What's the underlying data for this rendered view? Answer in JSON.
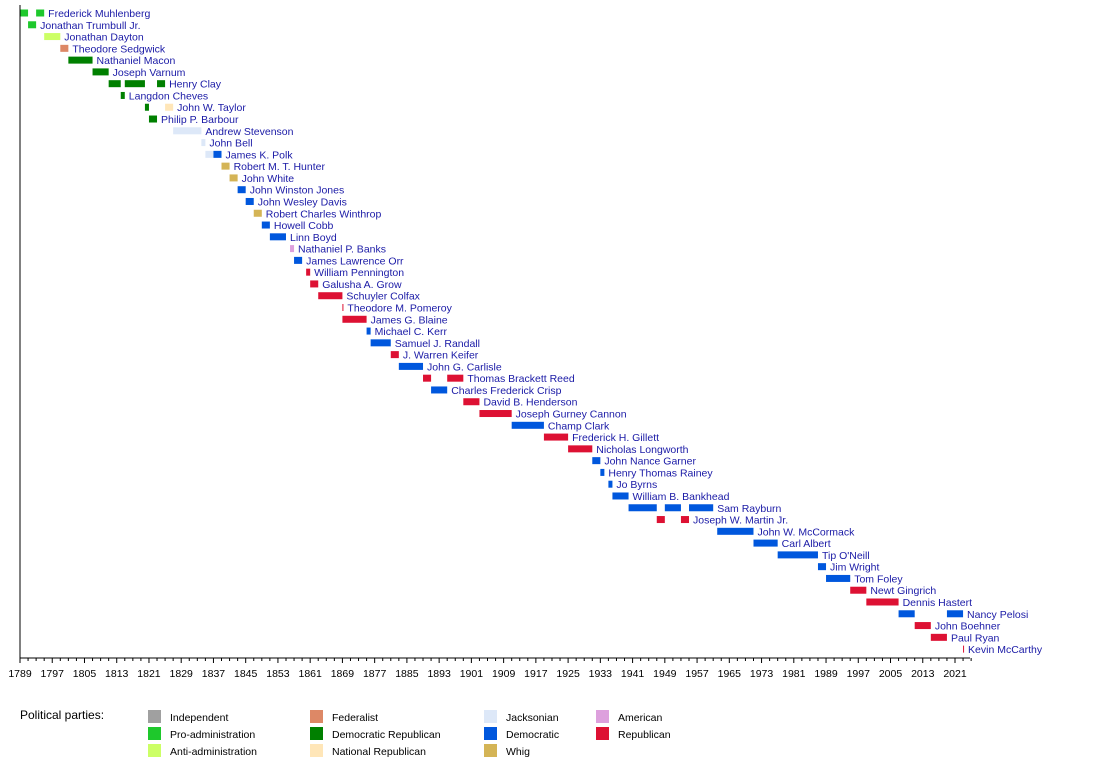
{
  "chart_data": {
    "type": "timeline",
    "title": "",
    "xlabel": "",
    "xlim": [
      1789,
      2025
    ],
    "x_ticks": [
      1789,
      1797,
      1805,
      1813,
      1821,
      1829,
      1837,
      1845,
      1853,
      1861,
      1869,
      1877,
      1885,
      1893,
      1901,
      1909,
      1917,
      1925,
      1933,
      1941,
      1949,
      1957,
      1965,
      1973,
      1981,
      1989,
      1997,
      2005,
      2013,
      2021
    ],
    "legend_title": "Political parties:",
    "parties": [
      {
        "key": "ind",
        "name": "Independent",
        "color": "#a0a0a0"
      },
      {
        "key": "pro",
        "name": "Pro-administration",
        "color": "#1ec82c"
      },
      {
        "key": "anti",
        "name": "Anti-administration",
        "color": "#ccff66"
      },
      {
        "key": "fed",
        "name": "Federalist",
        "color": "#dd8866"
      },
      {
        "key": "dr",
        "name": "Democratic Republican",
        "color": "#008000"
      },
      {
        "key": "nr",
        "name": "National Republican",
        "color": "#ffe6b8"
      },
      {
        "key": "jack",
        "name": "Jacksonian",
        "color": "#dde8f8"
      },
      {
        "key": "dem",
        "name": "Democratic",
        "color": "#0057dd"
      },
      {
        "key": "whig",
        "name": "Whig",
        "color": "#d4b456"
      },
      {
        "key": "am",
        "name": "American",
        "color": "#dda0dd"
      },
      {
        "key": "rep",
        "name": "Republican",
        "color": "#dd1133"
      }
    ],
    "speakers": [
      {
        "name": "Frederick Muhlenberg",
        "terms": [
          [
            1789,
            1791,
            "pro"
          ],
          [
            1793,
            1795,
            "pro"
          ]
        ]
      },
      {
        "name": "Jonathan Trumbull Jr.",
        "terms": [
          [
            1791,
            1793,
            "pro"
          ]
        ]
      },
      {
        "name": "Jonathan Dayton",
        "terms": [
          [
            1795,
            1799,
            "anti"
          ]
        ]
      },
      {
        "name": "Theodore Sedgwick",
        "terms": [
          [
            1799,
            1801,
            "fed"
          ]
        ]
      },
      {
        "name": "Nathaniel Macon",
        "terms": [
          [
            1801,
            1807,
            "dr"
          ]
        ]
      },
      {
        "name": "Joseph Varnum",
        "terms": [
          [
            1807,
            1811,
            "dr"
          ]
        ]
      },
      {
        "name": "Henry Clay",
        "terms": [
          [
            1811,
            1814,
            "dr"
          ],
          [
            1815,
            1820,
            "dr"
          ],
          [
            1823,
            1825,
            "dr"
          ]
        ]
      },
      {
        "name": "Langdon Cheves",
        "terms": [
          [
            1814,
            1815,
            "dr"
          ]
        ]
      },
      {
        "name": "John W. Taylor",
        "terms": [
          [
            1820,
            1821,
            "dr"
          ],
          [
            1825,
            1827,
            "nr"
          ]
        ]
      },
      {
        "name": "Philip P. Barbour",
        "terms": [
          [
            1821,
            1823,
            "dr"
          ]
        ]
      },
      {
        "name": "Andrew Stevenson",
        "terms": [
          [
            1827,
            1834,
            "jack"
          ]
        ]
      },
      {
        "name": "John Bell",
        "terms": [
          [
            1834,
            1835,
            "jack"
          ]
        ]
      },
      {
        "name": "James K. Polk",
        "terms": [
          [
            1835,
            1837,
            "jack"
          ],
          [
            1837,
            1839,
            "dem"
          ]
        ]
      },
      {
        "name": "Robert M. T. Hunter",
        "terms": [
          [
            1839,
            1841,
            "whig"
          ]
        ]
      },
      {
        "name": "John White",
        "terms": [
          [
            1841,
            1843,
            "whig"
          ]
        ]
      },
      {
        "name": "John Winston Jones",
        "terms": [
          [
            1843,
            1845,
            "dem"
          ]
        ]
      },
      {
        "name": "John Wesley Davis",
        "terms": [
          [
            1845,
            1847,
            "dem"
          ]
        ]
      },
      {
        "name": "Robert Charles Winthrop",
        "terms": [
          [
            1847,
            1849,
            "whig"
          ]
        ]
      },
      {
        "name": "Howell Cobb",
        "terms": [
          [
            1849,
            1851,
            "dem"
          ]
        ]
      },
      {
        "name": "Linn Boyd",
        "terms": [
          [
            1851,
            1855,
            "dem"
          ]
        ]
      },
      {
        "name": "Nathaniel P. Banks",
        "terms": [
          [
            1856,
            1857,
            "am"
          ]
        ]
      },
      {
        "name": "James Lawrence Orr",
        "terms": [
          [
            1857,
            1859,
            "dem"
          ]
        ]
      },
      {
        "name": "William Pennington",
        "terms": [
          [
            1860,
            1861,
            "rep"
          ]
        ]
      },
      {
        "name": "Galusha A. Grow",
        "terms": [
          [
            1861,
            1863,
            "rep"
          ]
        ]
      },
      {
        "name": "Schuyler Colfax",
        "terms": [
          [
            1863,
            1869,
            "rep"
          ]
        ]
      },
      {
        "name": "Theodore M. Pomeroy",
        "terms": [
          [
            1869,
            1869.1,
            "rep"
          ]
        ]
      },
      {
        "name": "James G. Blaine",
        "terms": [
          [
            1869,
            1875,
            "rep"
          ]
        ]
      },
      {
        "name": "Michael C. Kerr",
        "terms": [
          [
            1875,
            1876,
            "dem"
          ]
        ]
      },
      {
        "name": "Samuel J. Randall",
        "terms": [
          [
            1876,
            1881,
            "dem"
          ]
        ]
      },
      {
        "name": "J. Warren Keifer",
        "terms": [
          [
            1881,
            1883,
            "rep"
          ]
        ]
      },
      {
        "name": "John G. Carlisle",
        "terms": [
          [
            1883,
            1889,
            "dem"
          ]
        ]
      },
      {
        "name": "Thomas Brackett Reed",
        "terms": [
          [
            1889,
            1891,
            "rep"
          ],
          [
            1895,
            1899,
            "rep"
          ]
        ]
      },
      {
        "name": "Charles Frederick Crisp",
        "terms": [
          [
            1891,
            1895,
            "dem"
          ]
        ]
      },
      {
        "name": "David B. Henderson",
        "terms": [
          [
            1899,
            1903,
            "rep"
          ]
        ]
      },
      {
        "name": "Joseph Gurney Cannon",
        "terms": [
          [
            1903,
            1911,
            "rep"
          ]
        ]
      },
      {
        "name": "Champ Clark",
        "terms": [
          [
            1911,
            1919,
            "dem"
          ]
        ]
      },
      {
        "name": "Frederick H. Gillett",
        "terms": [
          [
            1919,
            1925,
            "rep"
          ]
        ]
      },
      {
        "name": "Nicholas Longworth",
        "terms": [
          [
            1925,
            1931,
            "rep"
          ]
        ]
      },
      {
        "name": "John Nance Garner",
        "terms": [
          [
            1931,
            1933,
            "dem"
          ]
        ]
      },
      {
        "name": "Henry Thomas Rainey",
        "terms": [
          [
            1933,
            1934,
            "dem"
          ]
        ]
      },
      {
        "name": "Jo Byrns",
        "terms": [
          [
            1935,
            1936,
            "dem"
          ]
        ]
      },
      {
        "name": "William B. Bankhead",
        "terms": [
          [
            1936,
            1940,
            "dem"
          ]
        ]
      },
      {
        "name": "Sam Rayburn",
        "terms": [
          [
            1940,
            1947,
            "dem"
          ],
          [
            1949,
            1953,
            "dem"
          ],
          [
            1955,
            1961,
            "dem"
          ]
        ]
      },
      {
        "name": "Joseph W. Martin Jr.",
        "terms": [
          [
            1947,
            1949,
            "rep"
          ],
          [
            1953,
            1955,
            "rep"
          ]
        ]
      },
      {
        "name": "John W. McCormack",
        "terms": [
          [
            1962,
            1971,
            "dem"
          ]
        ]
      },
      {
        "name": "Carl Albert",
        "terms": [
          [
            1971,
            1977,
            "dem"
          ]
        ]
      },
      {
        "name": "Tip O'Neill",
        "terms": [
          [
            1977,
            1987,
            "dem"
          ]
        ]
      },
      {
        "name": "Jim Wright",
        "terms": [
          [
            1987,
            1989,
            "dem"
          ]
        ]
      },
      {
        "name": "Tom Foley",
        "terms": [
          [
            1989,
            1995,
            "dem"
          ]
        ]
      },
      {
        "name": "Newt Gingrich",
        "terms": [
          [
            1995,
            1999,
            "rep"
          ]
        ]
      },
      {
        "name": "Dennis Hastert",
        "terms": [
          [
            1999,
            2007,
            "rep"
          ]
        ]
      },
      {
        "name": "Nancy Pelosi",
        "terms": [
          [
            2007,
            2011,
            "dem"
          ],
          [
            2019,
            2023,
            "dem"
          ]
        ]
      },
      {
        "name": "John Boehner",
        "terms": [
          [
            2011,
            2015,
            "rep"
          ]
        ]
      },
      {
        "name": "Paul Ryan",
        "terms": [
          [
            2015,
            2019,
            "rep"
          ]
        ]
      },
      {
        "name": "Kevin McCarthy",
        "terms": [
          [
            2023,
            2023.2,
            "rep"
          ]
        ]
      }
    ]
  }
}
